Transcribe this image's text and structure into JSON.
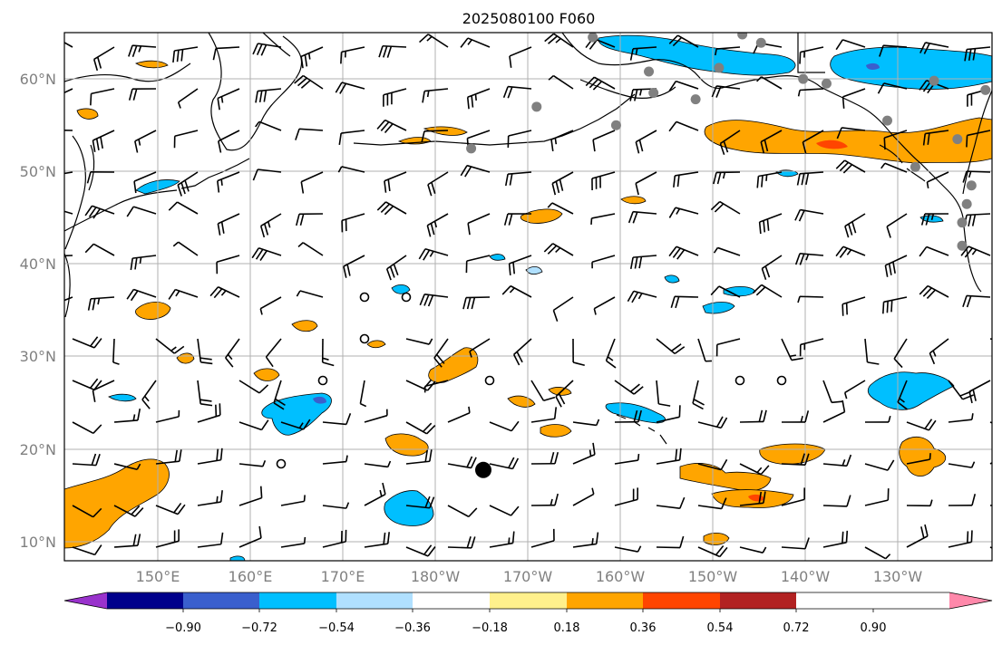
{
  "title": "2025080100 F060",
  "lat_labels": [
    "60°N",
    "50°N",
    "40°N",
    "30°N",
    "20°N",
    "10°N"
  ],
  "lon_labels": [
    "150°E",
    "160°E",
    "170°E",
    "180°W",
    "170°W",
    "160°W",
    "150°W",
    "140°W",
    "130°W"
  ],
  "colorbar": {
    "colors": [
      "#9932cc",
      "#00008b",
      "#3a5fcd",
      "#00bfff",
      "#b0e0ff",
      "#ffffff",
      "#fff08c",
      "#ffa500",
      "#ff4500",
      "#b22222",
      "#ff88aa"
    ],
    "tick_labels": [
      "−0.90",
      "−0.72",
      "−0.54",
      "−0.36",
      "−0.18",
      "0.18",
      "0.36",
      "0.54",
      "0.72",
      "0.90"
    ]
  },
  "markers": {
    "storm_center": {
      "lon": -175.2,
      "lat": 17.8
    },
    "stations_gray": [
      {
        "lon": -163.5,
        "lat": 64.5
      },
      {
        "lon": -157.5,
        "lat": 60.8
      },
      {
        "lon": -147.5,
        "lat": 64.8
      },
      {
        "lon": -145.5,
        "lat": 63.9
      },
      {
        "lon": -150.0,
        "lat": 61.2
      },
      {
        "lon": -138.5,
        "lat": 59.5
      },
      {
        "lon": -127.0,
        "lat": 59.8
      },
      {
        "lon": -121.5,
        "lat": 58.8
      },
      {
        "lon": -141.0,
        "lat": 60.0
      },
      {
        "lon": -169.5,
        "lat": 57.0
      },
      {
        "lon": -161.0,
        "lat": 55.0
      },
      {
        "lon": -132.0,
        "lat": 55.5
      },
      {
        "lon": -157.0,
        "lat": 58.5
      },
      {
        "lon": -152.5,
        "lat": 57.8
      },
      {
        "lon": -176.5,
        "lat": 52.5
      },
      {
        "lon": -129.0,
        "lat": 50.5
      },
      {
        "lon": -124.5,
        "lat": 53.5
      },
      {
        "lon": -123.0,
        "lat": 48.5
      },
      {
        "lon": -124.0,
        "lat": 44.5
      },
      {
        "lon": -124.0,
        "lat": 42.0
      },
      {
        "lon": -123.5,
        "lat": 46.5
      }
    ]
  }
}
